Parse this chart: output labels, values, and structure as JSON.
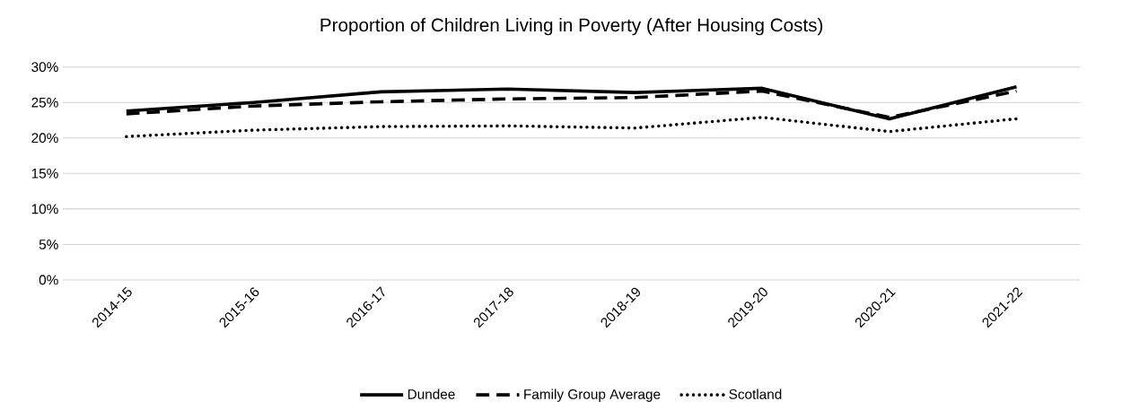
{
  "chart_data": {
    "type": "line",
    "title": "Proportion of Children Living in Poverty (After Housing Costs)",
    "categories": [
      "2014-15",
      "2015-16",
      "2016-17",
      "2017-18",
      "2018-19",
      "2019-20",
      "2020-21",
      "2021-22"
    ],
    "series": [
      {
        "name": "Dundee",
        "color": "#000000",
        "line_style": "solid",
        "values": [
          23.8,
          25.0,
          26.5,
          26.9,
          26.4,
          27.0,
          22.7,
          27.2
        ]
      },
      {
        "name": "Family Group Average",
        "color": "#000000",
        "line_style": "dashed",
        "values": [
          23.4,
          24.5,
          25.1,
          25.5,
          25.7,
          26.6,
          22.9,
          26.6
        ]
      },
      {
        "name": "Scotland",
        "color": "#000000",
        "line_style": "dotted",
        "values": [
          20.2,
          21.1,
          21.6,
          21.7,
          21.4,
          22.9,
          20.9,
          22.7
        ]
      }
    ],
    "ylim": [
      0,
      30
    ],
    "yticks": [
      {
        "value": 0,
        "label": "0%"
      },
      {
        "value": 5,
        "label": "5%"
      },
      {
        "value": 10,
        "label": "10%"
      },
      {
        "value": 15,
        "label": "15%"
      },
      {
        "value": 20,
        "label": "20%"
      },
      {
        "value": 25,
        "label": "25%"
      },
      {
        "value": 30,
        "label": "30%"
      }
    ],
    "grid": "y",
    "legend": "bottom",
    "marker": "none"
  }
}
